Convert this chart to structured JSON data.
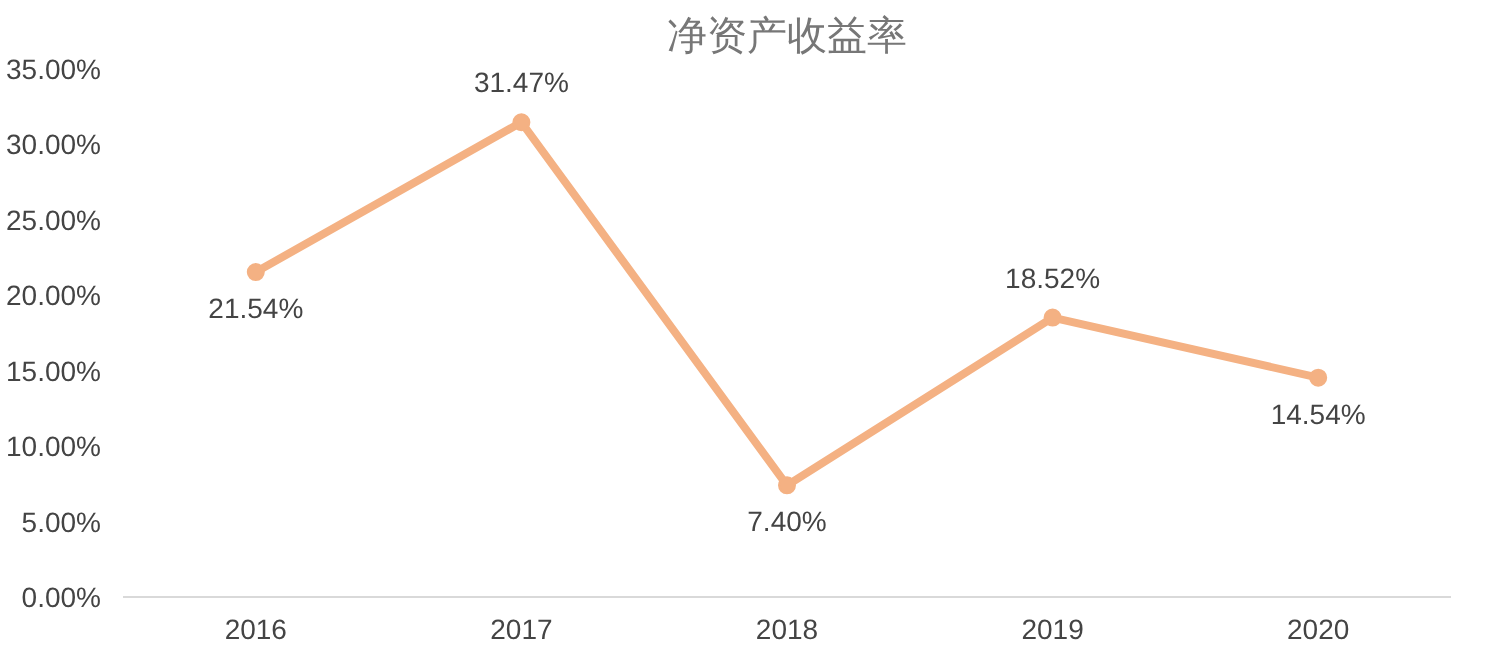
{
  "chart_data": {
    "type": "line",
    "title": "净资产收益率",
    "categories": [
      "2016",
      "2017",
      "2018",
      "2019",
      "2020"
    ],
    "series": [
      {
        "color": "#f4b183",
        "values": [
          21.54,
          31.47,
          7.4,
          18.52,
          14.54
        ],
        "value_labels": [
          "21.54%",
          "31.47%",
          "7.40%",
          "18.52%",
          "14.54%"
        ]
      }
    ],
    "ylim": [
      0,
      35
    ],
    "yticks": [
      {
        "value": 0,
        "label": "0.00%"
      },
      {
        "value": 5,
        "label": "5.00%"
      },
      {
        "value": 10,
        "label": "10.00%"
      },
      {
        "value": 15,
        "label": "15.00%"
      },
      {
        "value": 20,
        "label": "20.00%"
      },
      {
        "value": 25,
        "label": "25.00%"
      },
      {
        "value": 30,
        "label": "30.00%"
      },
      {
        "value": 35,
        "label": "35.00%"
      }
    ],
    "grid": false,
    "marker": "circle",
    "line_style": "solid"
  }
}
